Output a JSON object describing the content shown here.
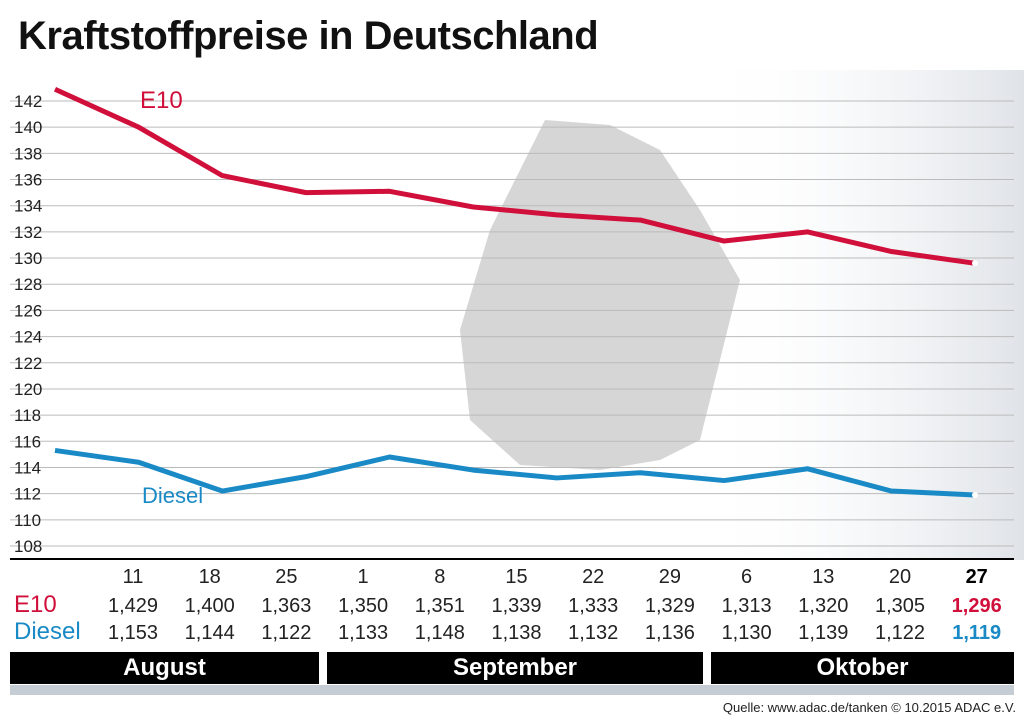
{
  "title": "Kraftstoffpreise in Deutschland",
  "chart_data": {
    "type": "line",
    "title": "Kraftstoffpreise in Deutschland",
    "ylim": [
      108,
      142
    ],
    "yticks": [
      108,
      110,
      112,
      114,
      116,
      118,
      120,
      122,
      124,
      126,
      128,
      130,
      132,
      134,
      136,
      138,
      140,
      142
    ],
    "grid": true,
    "categories": [
      "11",
      "18",
      "25",
      "1",
      "8",
      "15",
      "22",
      "29",
      "6",
      "13",
      "20",
      "27"
    ],
    "months": [
      "August",
      "September",
      "Oktober"
    ],
    "series": [
      {
        "name": "E10",
        "color": "#d0103a",
        "values_label": [
          "1,429",
          "1,400",
          "1,363",
          "1,350",
          "1,351",
          "1,339",
          "1,333",
          "1,329",
          "1,313",
          "1,320",
          "1,305",
          "1,296"
        ],
        "values": [
          142.9,
          140.0,
          136.3,
          135.0,
          135.1,
          133.9,
          133.3,
          132.9,
          131.3,
          132.0,
          130.5,
          129.6
        ]
      },
      {
        "name": "Diesel",
        "color": "#1a8ac6",
        "values_label": [
          "1,153",
          "1,144",
          "1,122",
          "1,133",
          "1,148",
          "1,138",
          "1,132",
          "1,136",
          "1,130",
          "1,139",
          "1,122",
          "1,119"
        ],
        "values": [
          115.3,
          114.4,
          112.2,
          113.3,
          114.8,
          113.8,
          113.2,
          113.6,
          113.0,
          113.9,
          112.2,
          111.9
        ]
      }
    ]
  },
  "source": "Quelle: www.adac.de/tanken   © 10.2015  ADAC e.V."
}
